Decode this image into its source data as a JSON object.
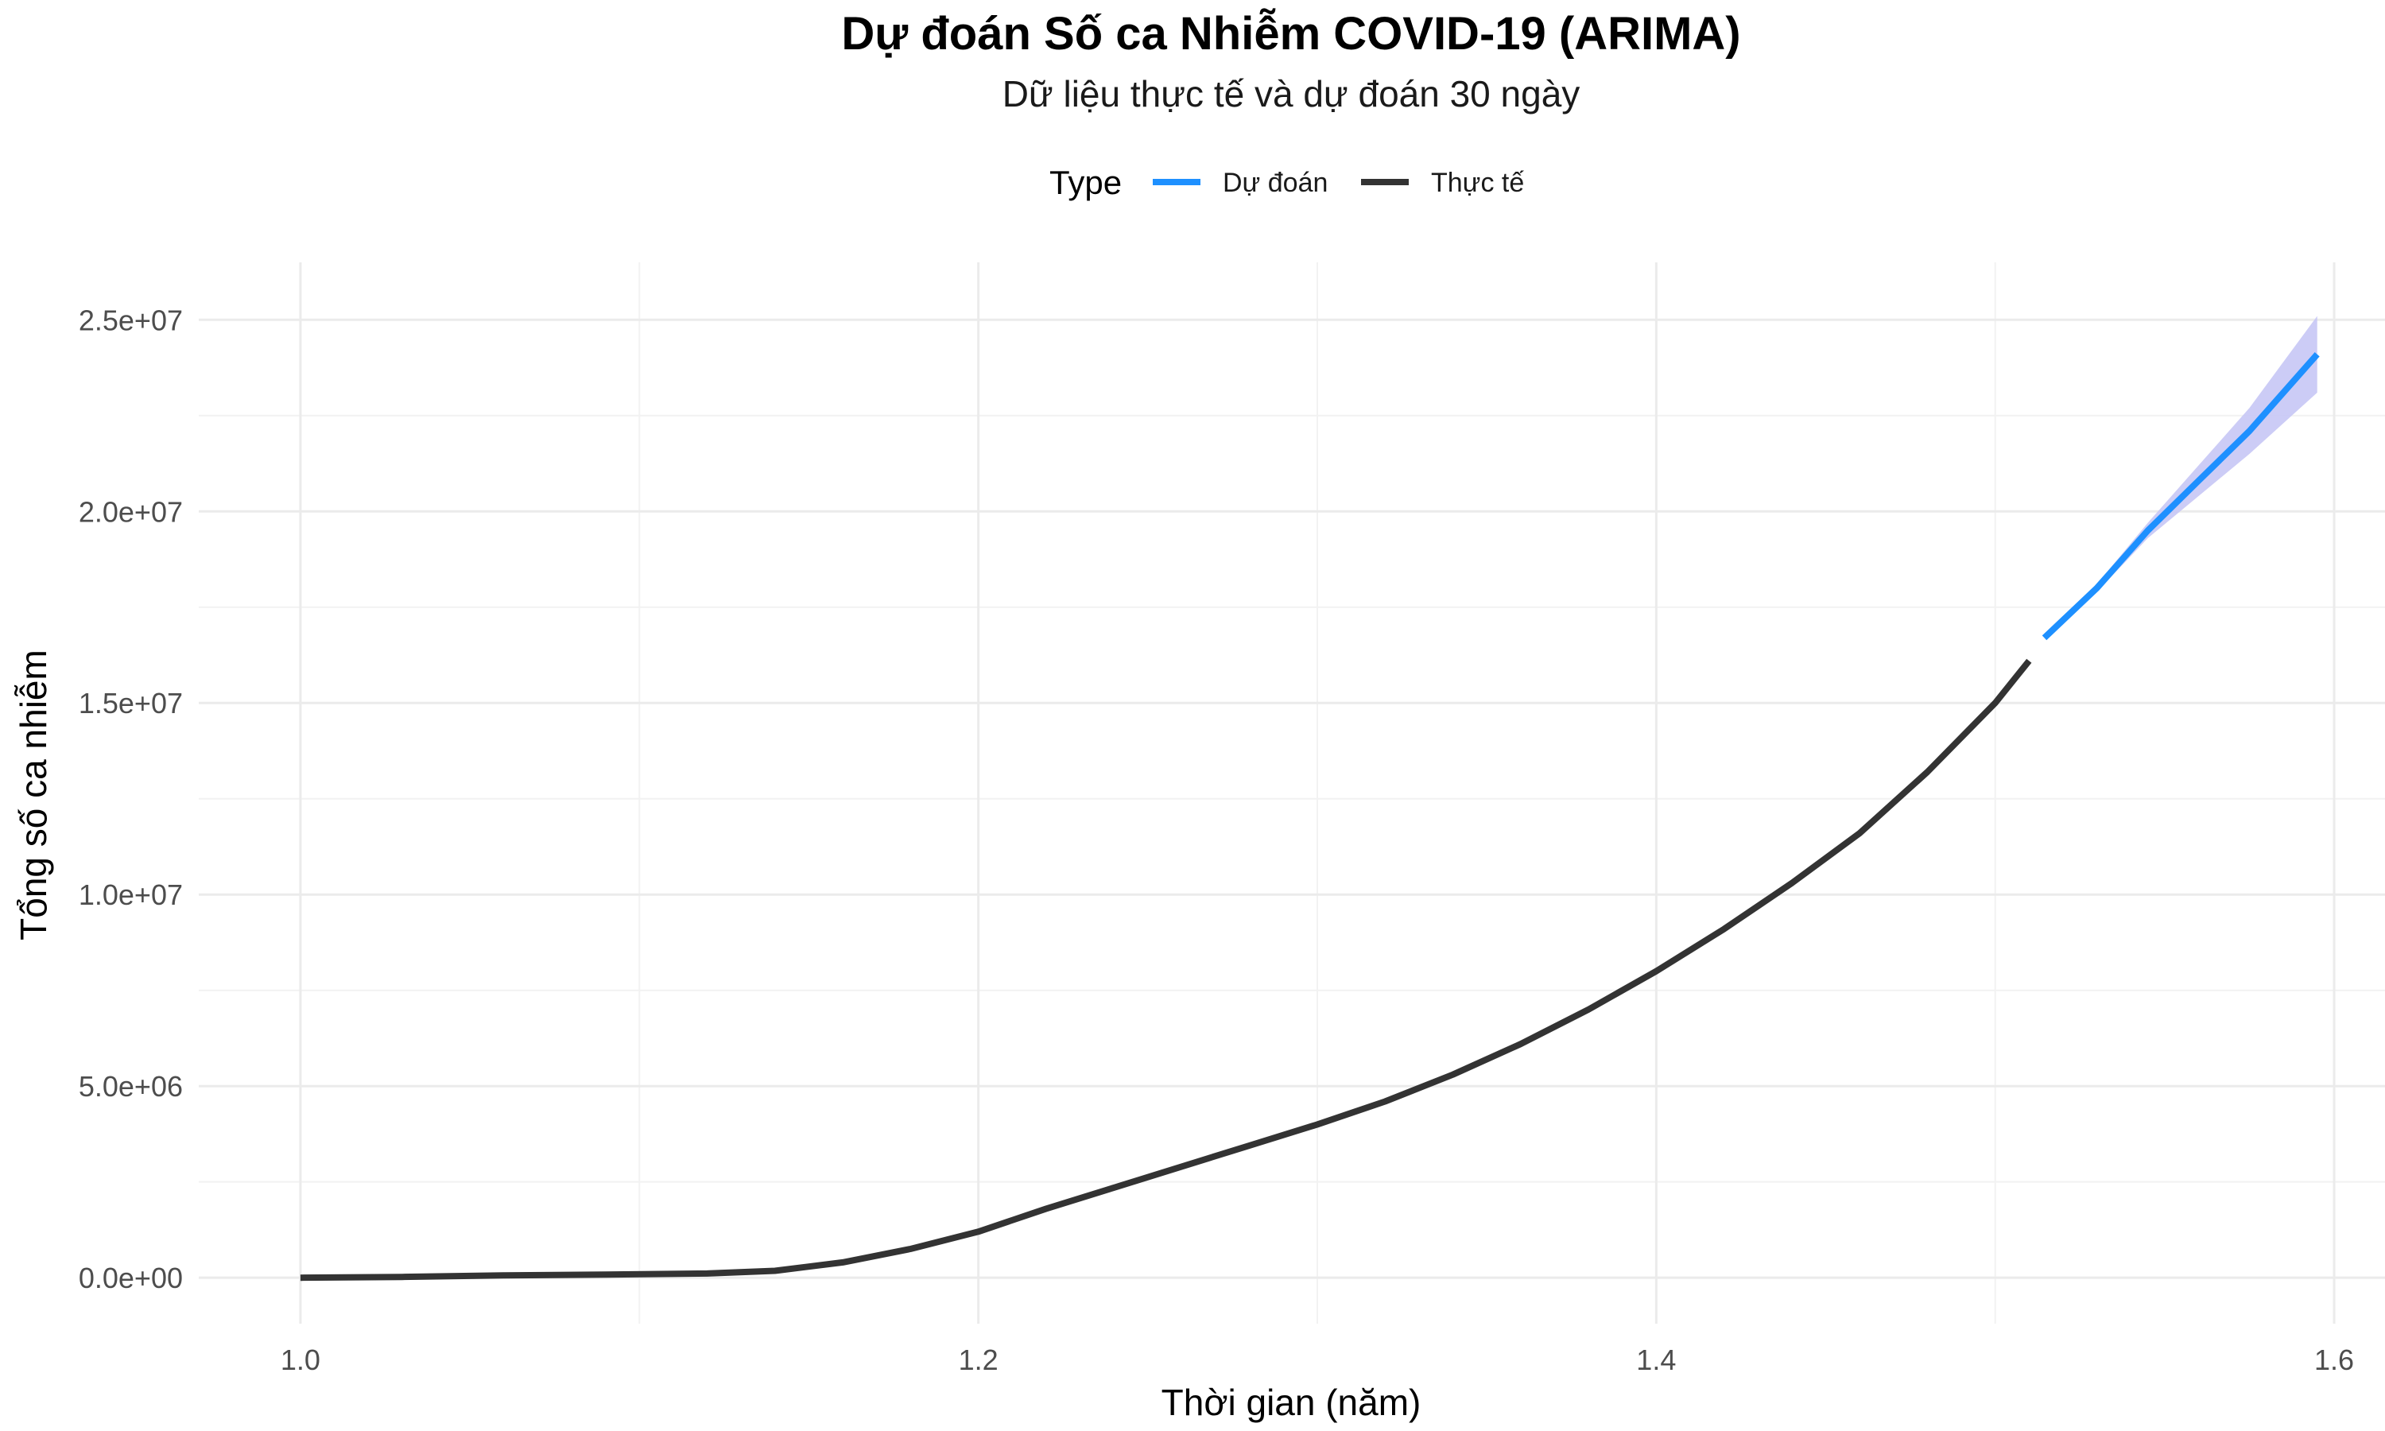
{
  "chart_data": {
    "type": "line",
    "title": "Dự đoán Số ca Nhiễm COVID-19 (ARIMA)",
    "subtitle": "Dữ liệu thực tế và dự đoán 30 ngày",
    "xlabel": "Thời gian (năm)",
    "ylabel": "Tổng số ca nhiễm",
    "xlim": [
      0.97,
      1.615
    ],
    "ylim": [
      -1200000,
      26500000
    ],
    "x_ticks": [
      1.0,
      1.2,
      1.4,
      1.6
    ],
    "x_tick_labels": [
      "1.0",
      "1.2",
      "1.4",
      "1.6"
    ],
    "y_ticks": [
      0,
      5000000,
      10000000,
      15000000,
      20000000,
      25000000
    ],
    "y_tick_labels": [
      "0.0e+00",
      "5.0e+06",
      "1.0e+07",
      "1.5e+07",
      "2.0e+07",
      "2.5e+07"
    ],
    "grid": true,
    "legend": {
      "title": "Type",
      "position": "top",
      "entries": [
        {
          "label": "Dự đoán",
          "color": "#1e90ff"
        },
        {
          "label": "Thực tế",
          "color": "#333333"
        }
      ]
    },
    "series": [
      {
        "name": "Thực tế",
        "color": "#333333",
        "points": [
          [
            1.0,
            0
          ],
          [
            1.03,
            20000
          ],
          [
            1.06,
            60000
          ],
          [
            1.09,
            80000
          ],
          [
            1.12,
            110000
          ],
          [
            1.14,
            180000
          ],
          [
            1.16,
            400000
          ],
          [
            1.18,
            750000
          ],
          [
            1.2,
            1200000
          ],
          [
            1.22,
            1800000
          ],
          [
            1.24,
            2350000
          ],
          [
            1.26,
            2900000
          ],
          [
            1.28,
            3450000
          ],
          [
            1.3,
            4000000
          ],
          [
            1.32,
            4600000
          ],
          [
            1.34,
            5300000
          ],
          [
            1.36,
            6100000
          ],
          [
            1.38,
            7000000
          ],
          [
            1.4,
            8000000
          ],
          [
            1.42,
            9100000
          ],
          [
            1.44,
            10300000
          ],
          [
            1.46,
            11600000
          ],
          [
            1.48,
            13200000
          ],
          [
            1.5,
            15000000
          ],
          [
            1.51,
            16100000
          ]
        ]
      },
      {
        "name": "Dự đoán",
        "color": "#1e90ff",
        "points": [
          [
            1.5145,
            16700000
          ],
          [
            1.53,
            18000000
          ],
          [
            1.545,
            19500000
          ],
          [
            1.56,
            20800000
          ],
          [
            1.575,
            22100000
          ],
          [
            1.595,
            24100000
          ]
        ],
        "band_color": "#c6c6f5",
        "lower": [
          16700000,
          17900000,
          19300000,
          20400000,
          21500000,
          23100000
        ],
        "upper": [
          16700000,
          18100000,
          19700000,
          21200000,
          22700000,
          25100000
        ]
      }
    ]
  }
}
